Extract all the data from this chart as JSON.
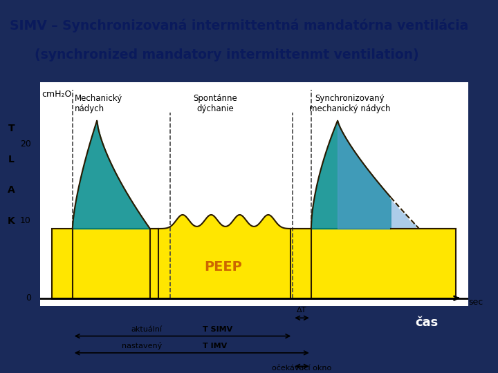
{
  "title_line1": "SIMV – Synchronizovaná intermittentná mandatórna ventilácia",
  "title_line2": "(synchronized mandatory intermittenmt ventilation)",
  "bg_color": "#1a2a5a",
  "panel_bg": "#ffffff",
  "ylabel_letters": [
    "T",
    "L",
    "A",
    "K"
  ],
  "yticks": [
    0,
    10,
    20
  ],
  "xlabel": "sec",
  "cmh2o_label": "cmH₂O",
  "peep_label": "PEEP",
  "peep_level": 9,
  "label1": "Mechanický\nnádych",
  "label2": "Spontánne\ndýchanie",
  "label3": "Synchronizovaný\nmechanický nádych",
  "cas_label": "čas",
  "delta_t_label": "ΔT",
  "aktualni_label": "aktuální",
  "t_simv_label": "T SIMV",
  "nastaveny_label": "nastavený",
  "t_imv_label": "T IMV",
  "ocekavaci_label": "očekávací okno",
  "teal_color": "#008B8B",
  "teal_light": "#4DADA0",
  "blue_fill": "#5B9BD5",
  "yellow_color": "#FFE600",
  "dark_outline": "#2a1a00",
  "dashed_color": "#333333"
}
